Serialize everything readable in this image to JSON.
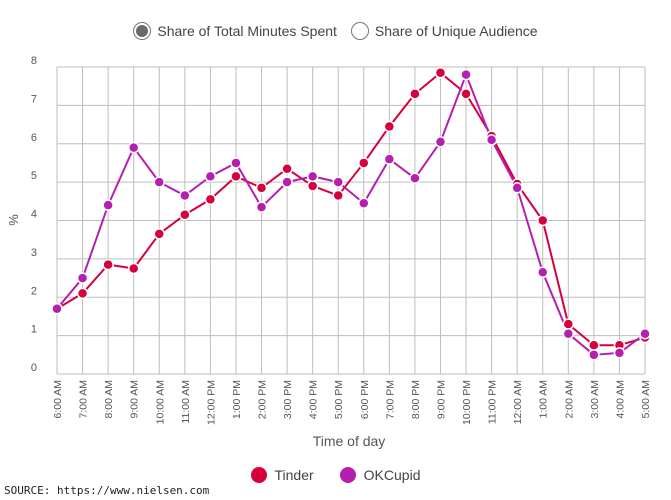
{
  "toggles": [
    {
      "label": "Share of Total Minutes Spent",
      "selected": true
    },
    {
      "label": "Share of Unique Audience",
      "selected": false
    }
  ],
  "legend": {
    "tinder": "Tinder",
    "okcupid": "OKCupid"
  },
  "source": "SOURCE: https://www.nielsen.com",
  "chart_data": {
    "type": "line",
    "title": "",
    "xlabel": "Time of day",
    "ylabel": "%",
    "ylim": [
      0,
      8
    ],
    "yticks": [
      0,
      1,
      2,
      3,
      4,
      5,
      6,
      7,
      8
    ],
    "grid": true,
    "legend_position": "bottom",
    "categories": [
      "6:00 AM",
      "7:00 AM",
      "8:00 AM",
      "9:00 AM",
      "10:00 AM",
      "11:00 AM",
      "12:00 PM",
      "1:00 PM",
      "2:00 PM",
      "3:00 PM",
      "4:00 PM",
      "5:00 PM",
      "6:00 PM",
      "7:00 PM",
      "8:00 PM",
      "9:00 PM",
      "10:00 PM",
      "11:00 PM",
      "12:00 AM",
      "1:00 AM",
      "2:00 AM",
      "3:00 AM",
      "4:00 AM",
      "5:00 AM"
    ],
    "series": [
      {
        "name": "Tinder",
        "color": "#d6003c",
        "values": [
          1.7,
          2.1,
          2.85,
          2.75,
          3.65,
          4.15,
          4.55,
          5.15,
          4.85,
          5.35,
          4.9,
          4.65,
          5.5,
          6.45,
          7.3,
          7.85,
          7.3,
          6.2,
          4.95,
          4.0,
          1.3,
          0.75,
          0.75,
          0.95
        ]
      },
      {
        "name": "OKCupid",
        "color": "#b51fb0",
        "values": [
          1.7,
          2.5,
          4.4,
          5.9,
          5.0,
          4.65,
          5.15,
          5.5,
          4.35,
          5.0,
          5.15,
          5.0,
          4.45,
          5.6,
          5.1,
          6.05,
          7.8,
          6.1,
          4.85,
          2.65,
          1.05,
          0.5,
          0.55,
          1.05
        ]
      }
    ]
  }
}
